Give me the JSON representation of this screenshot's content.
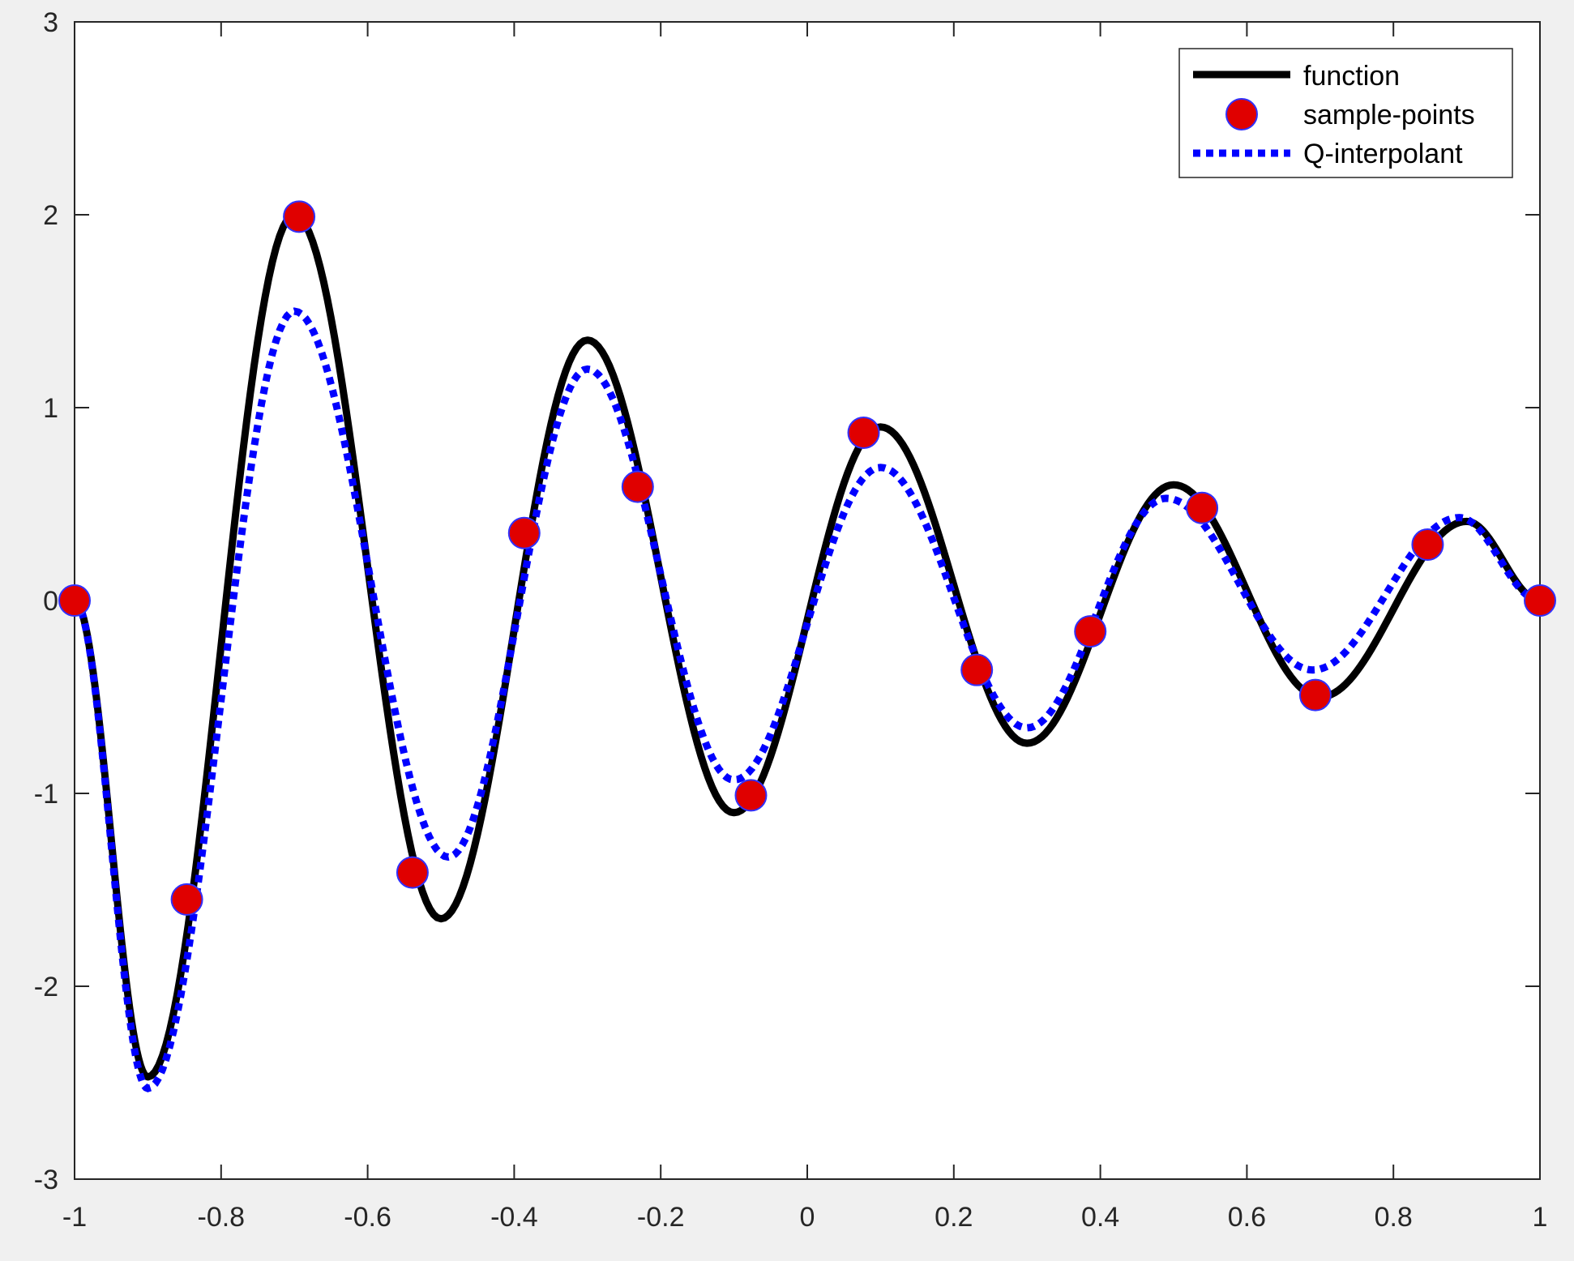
{
  "chart_data": {
    "type": "line",
    "title": "",
    "xlabel": "",
    "ylabel": "",
    "xlim": [
      -1,
      1
    ],
    "ylim": [
      -3,
      3
    ],
    "xticks": [
      -1,
      -0.8,
      -0.6,
      -0.4,
      -0.2,
      0,
      0.2,
      0.4,
      0.6,
      0.8,
      1
    ],
    "xtick_labels": [
      "-1",
      "-0.8",
      "-0.6",
      "-0.4",
      "-0.2",
      "0",
      "0.2",
      "0.4",
      "0.6",
      "0.8",
      "1"
    ],
    "yticks": [
      -3,
      -2,
      -1,
      0,
      1,
      2,
      3
    ],
    "ytick_labels": [
      "-3",
      "-2",
      "-1",
      "0",
      "1",
      "2",
      "3"
    ],
    "grid": false,
    "legend_position": "top-right",
    "series": [
      {
        "name": "function",
        "style": "solid",
        "color": "#000000",
        "x": [
          -1,
          -0.9,
          -0.7,
          -0.5,
          -0.3,
          -0.1,
          0.1,
          0.3,
          0.5,
          0.7,
          0.9,
          1
        ],
        "y": [
          0,
          -2.47,
          2.0,
          -1.65,
          1.35,
          -1.1,
          0.9,
          -0.74,
          0.6,
          -0.5,
          0.41,
          0
        ]
      },
      {
        "name": "sample-points",
        "style": "markers",
        "color": "#e00000",
        "edge_color": "#3030ff",
        "x": [
          -1,
          -0.8467,
          -0.6935,
          -0.5388,
          -0.3863,
          -0.2314,
          -0.0769,
          0.0769,
          0.2314,
          0.3863,
          0.5388,
          0.6935,
          0.8467,
          1
        ],
        "y": [
          0,
          -1.55,
          1.99,
          -1.41,
          0.35,
          0.59,
          -1.01,
          0.87,
          -0.36,
          -0.16,
          0.48,
          -0.49,
          0.29,
          0
        ]
      },
      {
        "name": "Q-interpolant",
        "style": "dotted",
        "color": "#0000ff",
        "x": [
          -1,
          -0.9,
          -0.7,
          -0.49,
          -0.3,
          -0.1,
          0.1,
          0.3,
          0.49,
          0.69,
          0.89,
          1
        ],
        "y": [
          0,
          -2.53,
          1.5,
          -1.33,
          1.2,
          -0.93,
          0.69,
          -0.66,
          0.53,
          -0.36,
          0.43,
          0
        ]
      }
    ]
  }
}
